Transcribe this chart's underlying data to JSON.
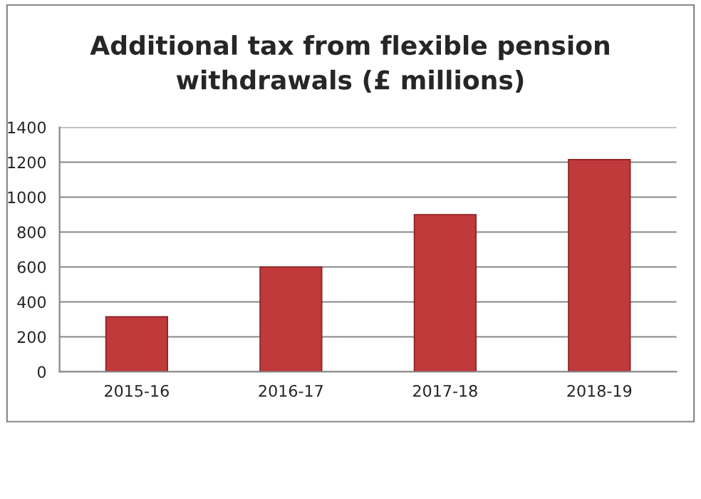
{
  "chart_data": {
    "type": "bar",
    "title": "Additional tax from flexible pension\nwithdrawals (£ millions)",
    "categories": [
      "2015-16",
      "2016-17",
      "2017-18",
      "2018-19"
    ],
    "values": [
      315,
      600,
      900,
      1215
    ],
    "color": "#c0393b",
    "ylim": [
      0,
      1400
    ],
    "yticks": [
      0,
      200,
      400,
      600,
      800,
      1000,
      1200,
      1400
    ],
    "grid": "y"
  }
}
